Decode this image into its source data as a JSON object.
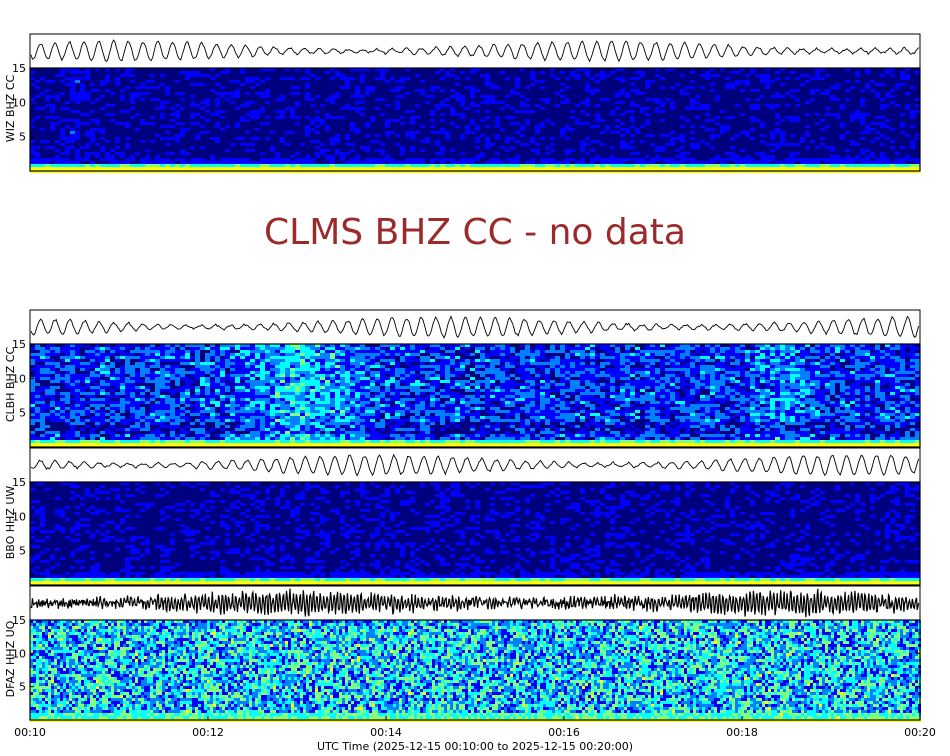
{
  "chart_data": {
    "type": "heatmap",
    "title": "",
    "xlabel": "UTC Time (2025-12-15 00:10:00 to 2025-12-15 00:20:00)",
    "x_ticks": [
      "00:10",
      "00:12",
      "00:14",
      "00:16",
      "00:18",
      "00:20"
    ],
    "y_ticks": [
      "5",
      "10",
      "15"
    ],
    "ylim": [
      0,
      15
    ],
    "colormap": [
      "#00007f",
      "#0000ff",
      "#0080ff",
      "#00ffff",
      "#80ff80",
      "#ffff00"
    ],
    "stations": [
      {
        "label": "WIZ BHZ CC",
        "has_data": true,
        "intensity": "low"
      },
      {
        "label": "CLMS BHZ CC",
        "has_data": false,
        "message": "CLMS BHZ CC - no data"
      },
      {
        "label": "CLBH BHZ CC",
        "has_data": true,
        "intensity": "medium"
      },
      {
        "label": "BBO HHZ UW",
        "has_data": true,
        "intensity": "low"
      },
      {
        "label": "DFAZ HHZ UO",
        "has_data": true,
        "intensity": "high"
      }
    ]
  }
}
